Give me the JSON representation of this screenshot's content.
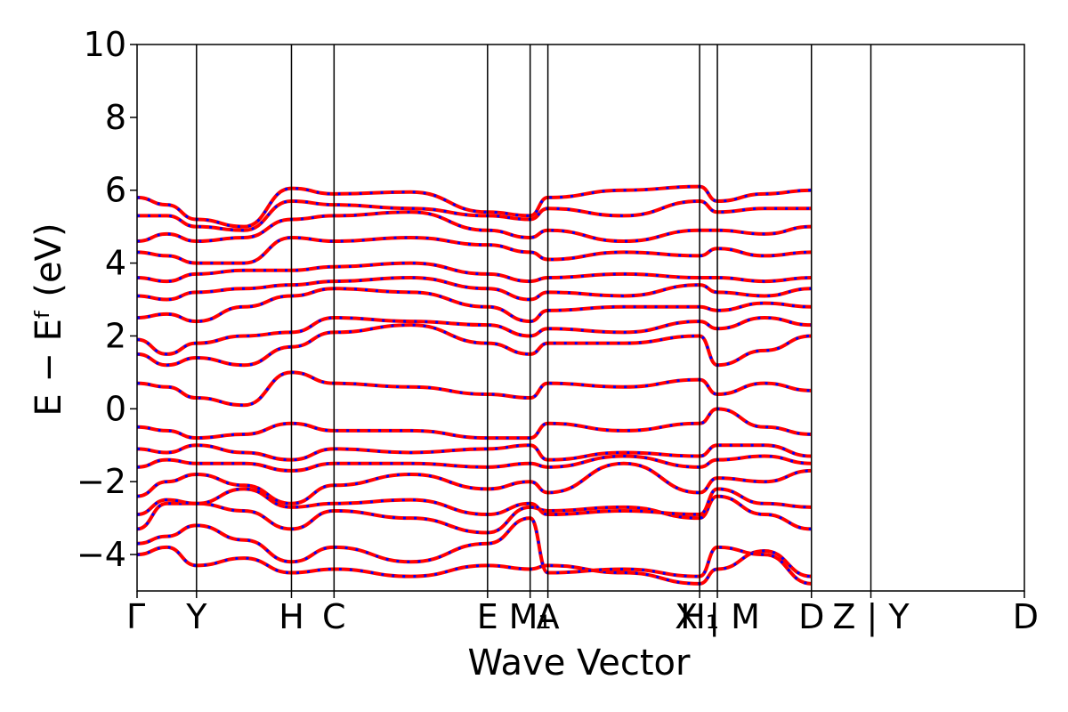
{
  "chart_data": {
    "type": "line",
    "xlabel": "Wave Vector",
    "ylabel": "E − Eᶠ (eV)",
    "ylim": [
      -5,
      10
    ],
    "yticks": [
      -4,
      -2,
      0,
      2,
      4,
      6,
      8,
      10
    ],
    "ytick_labels": [
      "−4",
      "−2",
      "0",
      "2",
      "4",
      "6",
      "8",
      "10"
    ],
    "xlim": [
      0,
      1
    ],
    "high_symmetry_points": [
      {
        "label": "Γ",
        "x": 0.0
      },
      {
        "label": "Y",
        "x": 0.067
      },
      {
        "label": "H",
        "x": 0.174
      },
      {
        "label": "C",
        "x": 0.222
      },
      {
        "label": "E",
        "x": 0.395
      },
      {
        "label": "M₁",
        "x": 0.443
      },
      {
        "label": "A",
        "x": 0.463
      },
      {
        "label": "H₁",
        "x": 0.634
      },
      {
        "label": "X | M",
        "x": 0.654
      },
      {
        "label": "D",
        "x": 0.76
      },
      {
        "label": "Z | Y",
        "x": 0.827
      },
      {
        "label": "D",
        "x": 1.0
      }
    ],
    "colors": {
      "up": "#ff0000",
      "down": "#0000ff"
    },
    "series": [
      {
        "values": [
          -4.0,
          -3.8,
          -4.3,
          -4.1,
          -4.5,
          -4.4,
          -4.6,
          -4.3,
          -4.4,
          -4.3,
          -4.5,
          -4.8,
          -4.4,
          -3.9,
          -4.6
        ]
      },
      {
        "values": [
          -3.7,
          -3.5,
          -3.2,
          -3.6,
          -4.2,
          -3.8,
          -4.2,
          -3.7,
          -3.0,
          -4.5,
          -4.4,
          -4.6,
          -3.8,
          -4.0,
          -4.8
        ]
      },
      {
        "values": [
          -3.3,
          -2.6,
          -2.6,
          -2.8,
          -3.3,
          -2.8,
          -3.0,
          -3.4,
          -2.7,
          -2.8,
          -2.7,
          -3.0,
          -2.4,
          -2.9,
          -3.3
        ]
      },
      {
        "values": [
          -2.9,
          -2.5,
          -2.6,
          -2.2,
          -2.7,
          -2.6,
          -2.5,
          -2.9,
          -2.6,
          -2.9,
          -2.8,
          -2.9,
          -2.2,
          -2.6,
          -2.7
        ]
      },
      {
        "values": [
          -2.4,
          -2.0,
          -1.8,
          -2.1,
          -2.6,
          -2.1,
          -1.8,
          -2.2,
          -2.0,
          -2.3,
          -1.5,
          -2.3,
          -1.9,
          -2.0,
          -1.7
        ]
      },
      {
        "values": [
          -1.6,
          -1.4,
          -1.5,
          -1.5,
          -1.7,
          -1.5,
          -1.5,
          -1.6,
          -1.5,
          -1.6,
          -1.3,
          -1.6,
          -1.4,
          -1.3,
          -1.5
        ]
      },
      {
        "values": [
          -1.1,
          -1.2,
          -1.0,
          -1.2,
          -1.4,
          -1.1,
          -1.2,
          -1.1,
          -1.0,
          -1.4,
          -1.2,
          -1.3,
          -1.0,
          -1.0,
          -1.3
        ]
      },
      {
        "values": [
          -0.5,
          -0.6,
          -0.8,
          -0.7,
          -0.4,
          -0.6,
          -0.6,
          -0.8,
          -0.8,
          -0.4,
          -0.6,
          -0.4,
          0.0,
          -0.5,
          -0.7
        ]
      },
      {
        "values": [
          0.7,
          0.6,
          0.3,
          0.1,
          1.0,
          0.7,
          0.6,
          0.4,
          0.3,
          0.7,
          0.6,
          0.8,
          0.4,
          0.7,
          0.5
        ]
      },
      {
        "values": [
          1.5,
          1.2,
          1.4,
          1.2,
          1.7,
          2.1,
          2.3,
          1.8,
          1.5,
          1.8,
          1.8,
          2.0,
          1.2,
          1.6,
          2.0
        ]
      },
      {
        "values": [
          1.9,
          1.5,
          1.8,
          2.0,
          2.1,
          2.5,
          2.4,
          2.3,
          2.0,
          2.2,
          2.1,
          2.4,
          2.2,
          2.5,
          2.3
        ]
      },
      {
        "values": [
          2.5,
          2.6,
          2.4,
          2.8,
          3.1,
          3.3,
          3.2,
          2.8,
          2.4,
          2.7,
          2.8,
          2.8,
          2.7,
          2.9,
          2.8
        ]
      },
      {
        "values": [
          3.1,
          3.0,
          3.2,
          3.3,
          3.4,
          3.5,
          3.6,
          3.3,
          3.0,
          3.2,
          3.1,
          3.4,
          3.2,
          3.1,
          3.3
        ]
      },
      {
        "values": [
          3.6,
          3.5,
          3.7,
          3.8,
          3.8,
          3.9,
          4.0,
          3.7,
          3.5,
          3.6,
          3.7,
          3.6,
          3.6,
          3.5,
          3.6
        ]
      },
      {
        "values": [
          4.3,
          4.2,
          4.0,
          4.0,
          4.7,
          4.6,
          4.7,
          4.5,
          4.3,
          4.1,
          4.3,
          4.2,
          4.4,
          4.2,
          4.3
        ]
      },
      {
        "values": [
          4.6,
          4.8,
          4.6,
          4.7,
          5.2,
          5.3,
          5.4,
          4.9,
          4.7,
          4.9,
          4.6,
          4.9,
          4.9,
          4.8,
          5.0
        ]
      },
      {
        "values": [
          5.3,
          5.3,
          5.0,
          4.9,
          5.7,
          5.6,
          5.5,
          5.3,
          5.2,
          5.5,
          5.3,
          5.7,
          5.4,
          5.5,
          5.5
        ]
      },
      {
        "values": [
          5.8,
          5.6,
          5.2,
          5.0,
          6.05,
          5.9,
          5.95,
          5.4,
          5.3,
          5.8,
          6.0,
          6.1,
          5.7,
          5.9,
          6.0
        ]
      }
    ]
  }
}
